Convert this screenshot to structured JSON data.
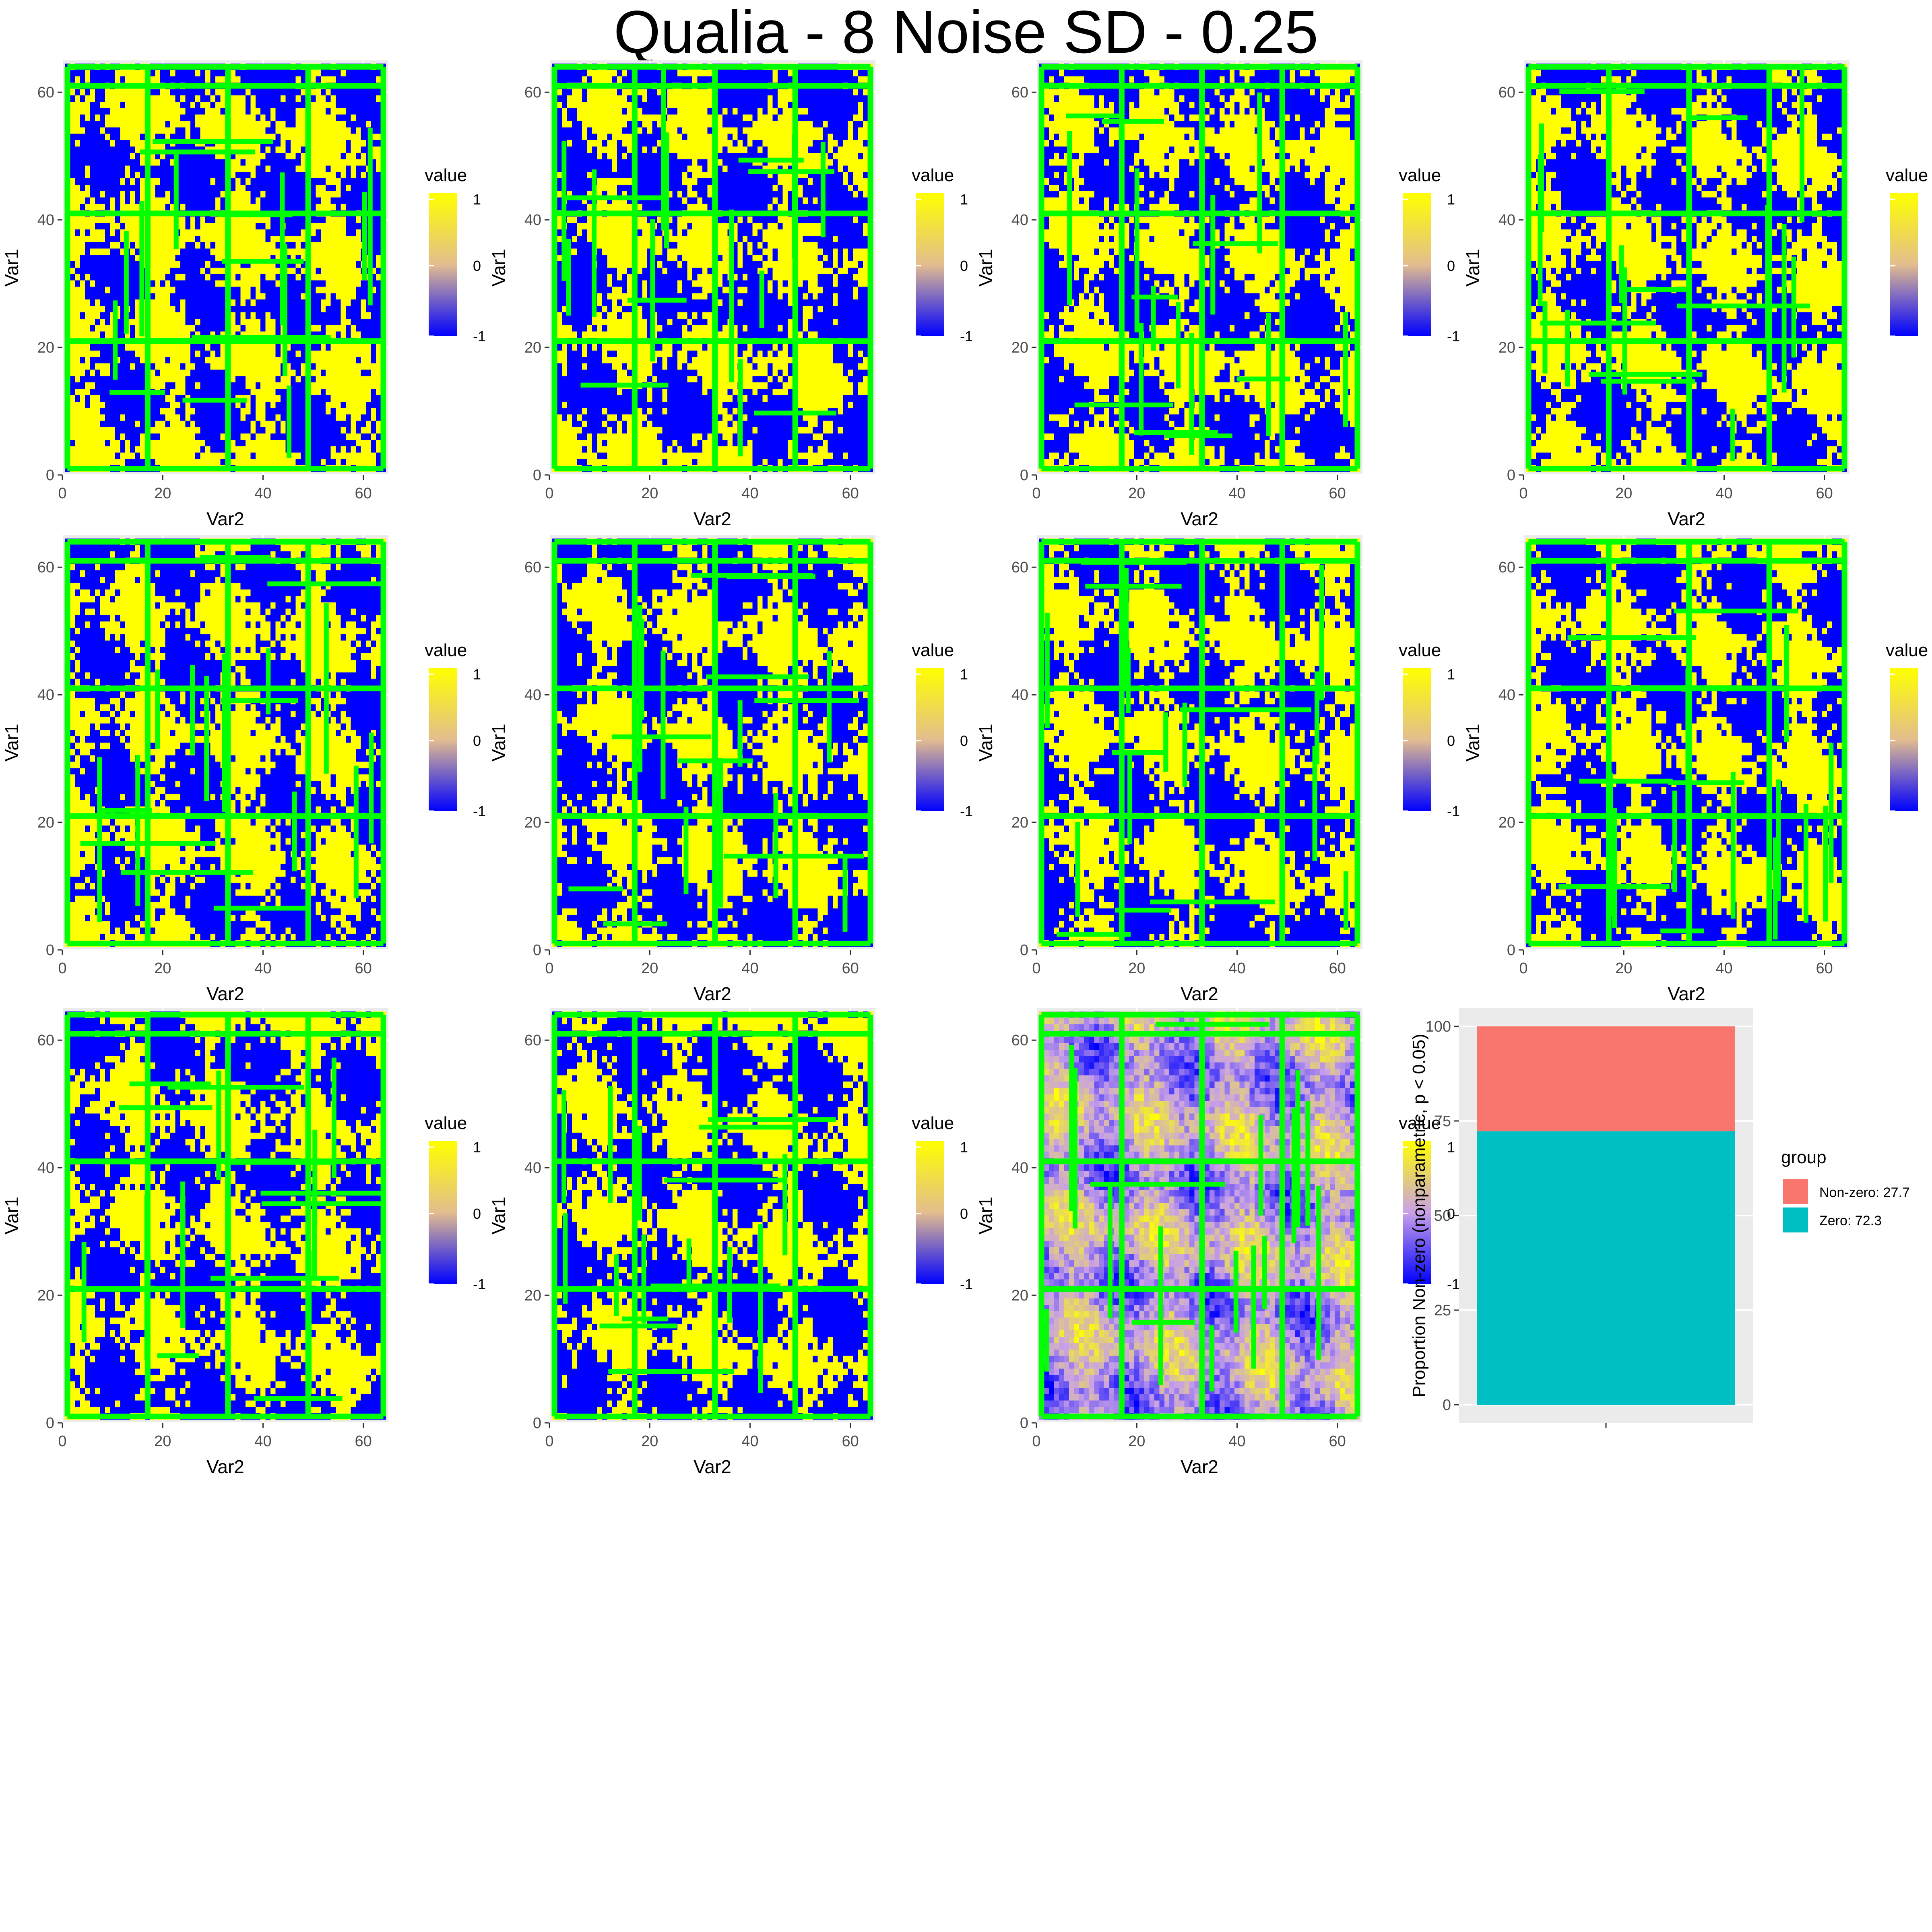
{
  "title": "Qualia -  8 Noise SD -  0.25",
  "colors": {
    "low": "#0000ff",
    "mid": "#ffffff",
    "high": "#ffff00",
    "mid_purple": "#c8a0e8",
    "overlay": "#00ff00",
    "panel_bg": "#ebebeb",
    "grid": "#ffffff",
    "bar_nonzero": "#f8766d",
    "bar_zero": "#00bfc4"
  },
  "chart_data": [
    {
      "type": "heatmap",
      "panels": 11,
      "xlabel": "Var2",
      "ylabel": "Var1",
      "xlim": [
        0,
        65
      ],
      "ylim": [
        0,
        65
      ],
      "x_ticks": [
        0,
        20,
        40,
        60
      ],
      "y_ticks": [
        0,
        20,
        40,
        60
      ],
      "grid_size": 64,
      "value_range": [
        -1,
        1
      ],
      "legend": {
        "title": "value",
        "labels": [
          "1",
          "0",
          "-1"
        ],
        "placement": "right"
      },
      "overlay_lines_y": [
        1,
        21,
        41,
        61,
        64
      ],
      "overlay_lines_x": [
        1,
        17,
        33,
        49,
        64
      ],
      "last_panel_continuous": true
    },
    {
      "type": "bar",
      "stacked": true,
      "ylabel": "Proportion Non-zero (nonparametric, p < 0.05)",
      "xlabel": "",
      "y_ticks": [
        0,
        25,
        50,
        75,
        100
      ],
      "ylim": [
        0,
        100
      ],
      "categories": [
        ""
      ],
      "series": [
        {
          "name": "Zero:  72.3",
          "value": 72.3,
          "color": "#00bfc4"
        },
        {
          "name": "Non-zero: 27.7",
          "value": 27.7,
          "color": "#f8766d"
        }
      ],
      "legend": {
        "title": "group",
        "placement": "right"
      }
    }
  ]
}
